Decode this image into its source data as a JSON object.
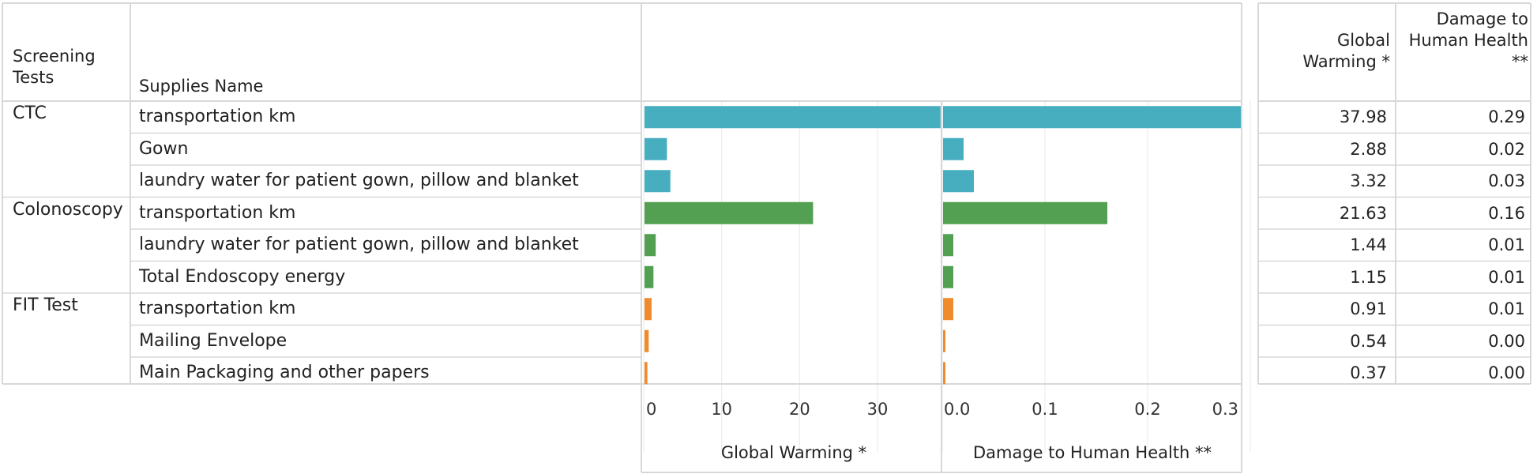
{
  "headers": {
    "group": "Screening Tests",
    "supply": "Supplies Name",
    "gw": "Global Warming *",
    "hh": "Damage to Human Health **"
  },
  "rows": [
    {
      "group": "CTC",
      "supply": "transportation km",
      "gw": "37.98",
      "hh": "0.29"
    },
    {
      "group": "",
      "supply": "Gown",
      "gw": "2.88",
      "hh": "0.02"
    },
    {
      "group": "",
      "supply": "laundry water for patient gown, pillow and blanket",
      "gw": "3.32",
      "hh": "0.03"
    },
    {
      "group": "Colonoscopy",
      "supply": "transportation km",
      "gw": "21.63",
      "hh": "0.16"
    },
    {
      "group": "",
      "supply": "laundry water for patient gown, pillow and blanket",
      "gw": "1.44",
      "hh": "0.01"
    },
    {
      "group": "",
      "supply": "Total Endoscopy energy",
      "gw": "1.15",
      "hh": "0.01"
    },
    {
      "group": "FIT Test",
      "supply": "transportation km",
      "gw": "0.91",
      "hh": "0.01"
    },
    {
      "group": "",
      "supply": "Mailing Envelope",
      "gw": "0.54",
      "hh": "0.00"
    },
    {
      "group": "",
      "supply": "Main Packaging and other papers",
      "gw": "0.37",
      "hh": "0.00"
    }
  ],
  "chart_data": [
    {
      "type": "bar",
      "orientation": "horizontal",
      "title": "",
      "xlabel": "Global Warming *",
      "xlim": [
        0,
        38
      ],
      "xticks": [
        "0",
        "10",
        "20",
        "30"
      ],
      "grid": true,
      "categories": [
        "CTC | transportation km",
        "CTC | Gown",
        "CTC | laundry water for patient gown, pillow and blanket",
        "Colonoscopy | transportation km",
        "Colonoscopy | laundry water for patient gown, pillow and blanket",
        "Colonoscopy | Total Endoscopy energy",
        "FIT Test | transportation km",
        "FIT Test | Mailing Envelope",
        "FIT Test | Main Packaging and other papers"
      ],
      "values": [
        37.98,
        2.88,
        3.32,
        21.63,
        1.44,
        1.15,
        0.91,
        0.54,
        0.37
      ]
    },
    {
      "type": "bar",
      "orientation": "horizontal",
      "title": "",
      "xlabel": "Damage to Human Health **",
      "xlim": [
        0,
        0.29
      ],
      "xticks": [
        "0.0",
        "0.1",
        "0.2",
        "0.3"
      ],
      "grid": true,
      "categories": [
        "CTC | transportation km",
        "CTC | Gown",
        "CTC | laundry water for patient gown, pillow and blanket",
        "Colonoscopy | transportation km",
        "Colonoscopy | laundry water for patient gown, pillow and blanket",
        "Colonoscopy | Total Endoscopy energy",
        "FIT Test | transportation km",
        "FIT Test | Mailing Envelope",
        "FIT Test | Main Packaging and other papers"
      ],
      "values": [
        0.29,
        0.02,
        0.03,
        0.16,
        0.01,
        0.01,
        0.01,
        0.0,
        0.0
      ]
    }
  ],
  "colors": {
    "CTC": "#46aebf",
    "Colonoscopy": "#54a052",
    "FIT Test": "#ef8b2c",
    "grid": "#ececec",
    "rule": "#d8d8d8"
  }
}
